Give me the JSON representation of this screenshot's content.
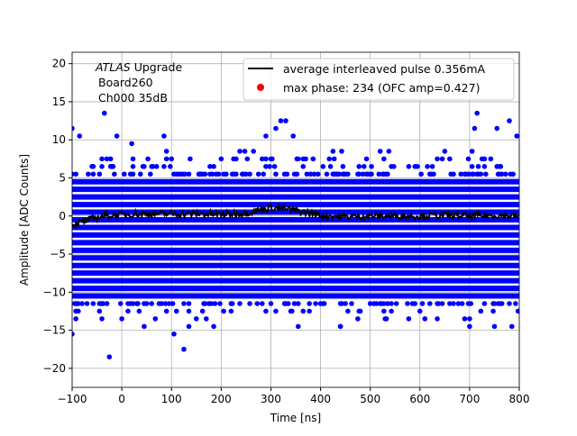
{
  "chart_data": {
    "type": "scatter",
    "xlabel": "Time [ns]",
    "ylabel": "Amplitude [ADC Counts]",
    "xlim": [
      -100,
      800
    ],
    "ylim": [
      -22.5,
      21.5
    ],
    "xticks": [
      -100,
      0,
      100,
      200,
      300,
      400,
      500,
      600,
      700,
      800
    ],
    "yticks": [
      -20,
      -15,
      -10,
      -5,
      0,
      5,
      10,
      15,
      20
    ],
    "grid": true,
    "annotation": {
      "italic": "ATLAS",
      "rest": " Upgrade",
      "line2": "Board260",
      "line3": "Ch000 35dB"
    },
    "legend": {
      "placement": "top-right",
      "entries": [
        {
          "label": "average interleaved pulse 0.356mA",
          "color": "#000000",
          "kind": "line"
        },
        {
          "label": "max phase: 234 (OFC amp=0.427)",
          "color": "#ff0000",
          "kind": "marker"
        }
      ]
    },
    "samples": {
      "color": "#0000ff",
      "x_step_ns": 2.5,
      "dense_levels": [
        -10.5,
        -9.5,
        -8.5,
        -7.5,
        -6.5,
        -5.5,
        -4.5,
        -3.5,
        -2.5,
        -1.5,
        -0.5,
        0.5,
        1.5,
        2.5,
        3.5,
        4.5
      ],
      "sparse_levels": [
        {
          "y": 5.5,
          "density": 0.25
        },
        {
          "y": 6.5,
          "density": 0.1
        },
        {
          "y": 7.5,
          "density": 0.05
        },
        {
          "y": 8.5,
          "density": 0.02
        },
        {
          "y": -11.5,
          "density": 0.25
        },
        {
          "y": -12.5,
          "density": 0.08
        },
        {
          "y": -13.5,
          "density": 0.03
        },
        {
          "y": -14.5,
          "density": 0.01
        }
      ],
      "outliers": [
        [
          -100,
          11.5
        ],
        [
          -85,
          10.5
        ],
        [
          -35,
          13.5
        ],
        [
          -100,
          -15.5
        ],
        [
          -25,
          -18.5
        ],
        [
          45,
          -14.5
        ],
        [
          0,
          -13.5
        ],
        [
          105,
          -15.5
        ],
        [
          125,
          -17.5
        ],
        [
          20,
          9.5
        ],
        [
          85,
          10.5
        ],
        [
          290,
          10.5
        ],
        [
          320,
          12.5
        ],
        [
          330,
          12.5
        ],
        [
          310,
          11.5
        ],
        [
          345,
          10.5
        ],
        [
          440,
          -14.5
        ],
        [
          530,
          -13.5
        ],
        [
          715,
          13.5
        ],
        [
          710,
          11.5
        ],
        [
          795,
          10.5
        ],
        [
          785,
          -14.5
        ],
        [
          635,
          -13.5
        ],
        [
          690,
          -13.5
        ],
        [
          700,
          -14.5
        ],
        [
          750,
          -14.5
        ],
        [
          170,
          -13.5
        ],
        [
          -10,
          10.5
        ],
        [
          755,
          11.5
        ],
        [
          780,
          12.5
        ]
      ]
    },
    "average_pulse": {
      "x": [
        -100,
        -80,
        -60,
        -40,
        -20,
        0,
        50,
        100,
        150,
        200,
        250,
        280,
        300,
        320,
        340,
        360,
        380,
        400,
        450,
        500,
        550,
        600,
        650,
        700,
        750,
        800
      ],
      "y": [
        -1.1,
        -0.8,
        -0.4,
        0.0,
        0.1,
        0.2,
        0.3,
        0.3,
        0.3,
        0.2,
        0.4,
        0.8,
        1.1,
        1.0,
        0.8,
        0.6,
        0.4,
        0.1,
        -0.1,
        0.0,
        0.0,
        0.0,
        0.1,
        0.0,
        0.1,
        0.0
      ]
    }
  }
}
